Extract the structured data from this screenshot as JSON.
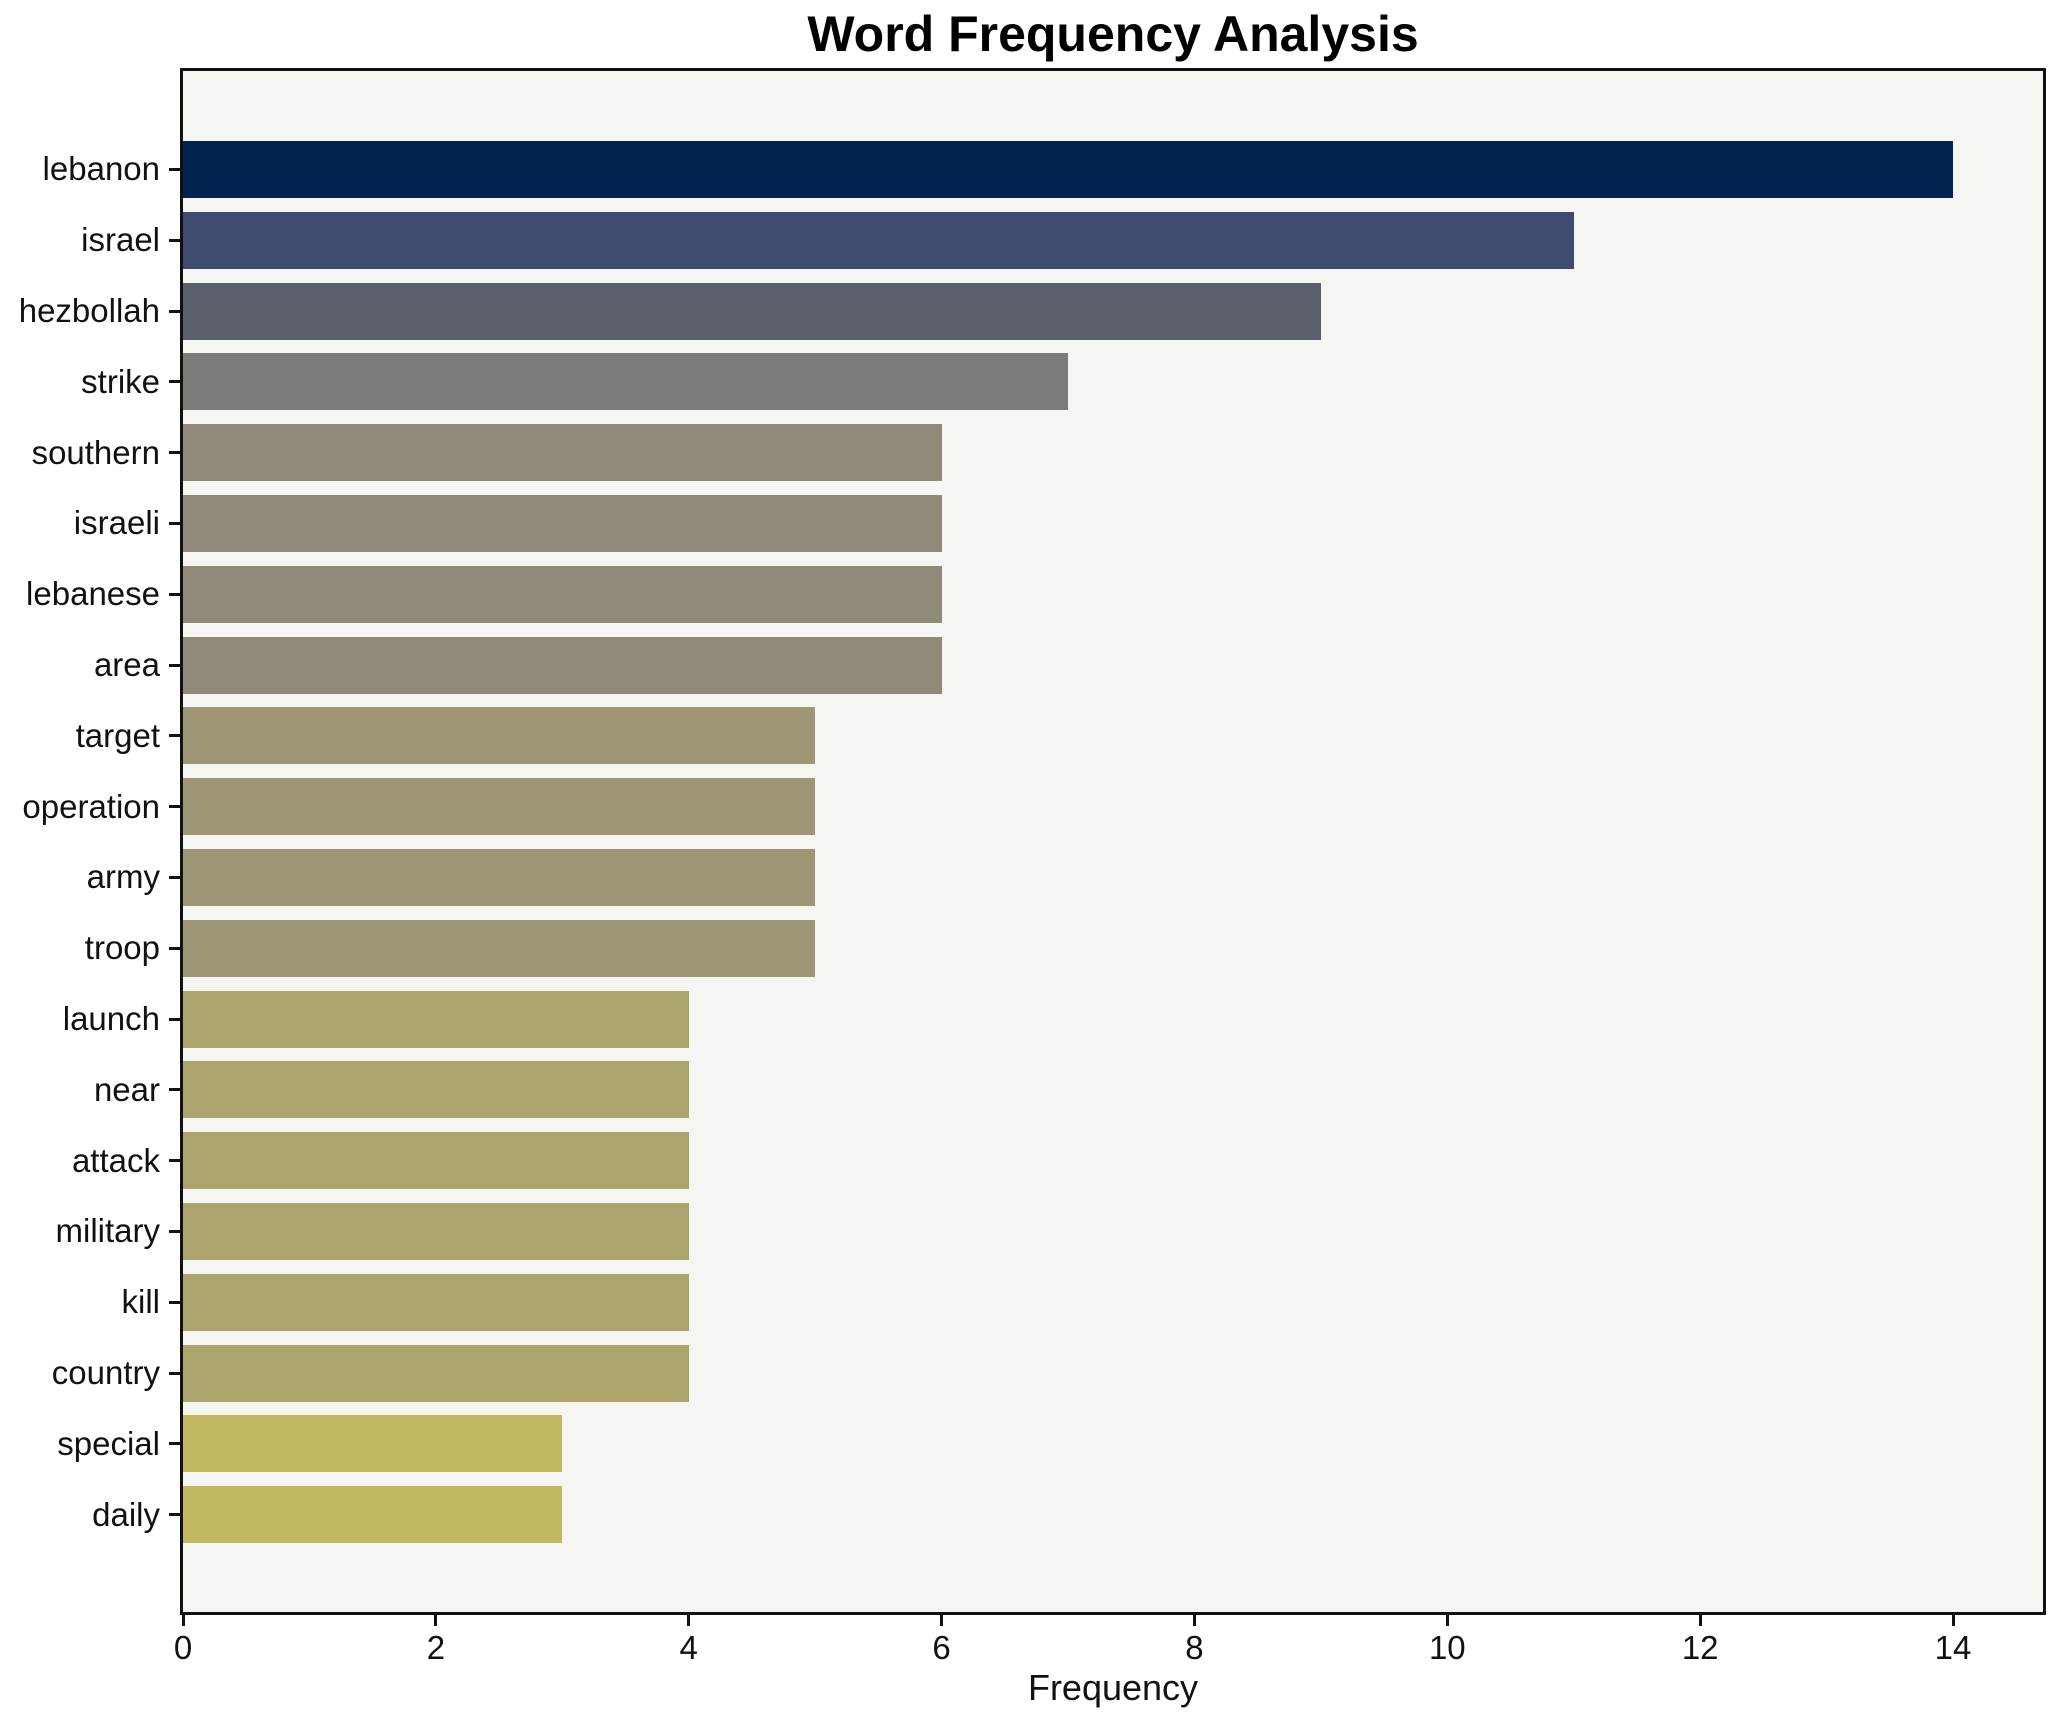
{
  "title": "Word Frequency Analysis",
  "chart_data": {
    "type": "bar",
    "orientation": "horizontal",
    "title": "Word Frequency Analysis",
    "xlabel": "Frequency",
    "ylabel": "",
    "categories": [
      "lebanon",
      "israel",
      "hezbollah",
      "strike",
      "southern",
      "israeli",
      "lebanese",
      "area",
      "target",
      "operation",
      "army",
      "troop",
      "launch",
      "near",
      "attack",
      "military",
      "kill",
      "country",
      "special",
      "daily"
    ],
    "values": [
      14,
      11,
      9,
      7,
      6,
      6,
      6,
      6,
      5,
      5,
      5,
      5,
      4,
      4,
      4,
      4,
      4,
      4,
      3,
      3
    ],
    "bar_colors": [
      "#032350",
      "#3c4b6e",
      "#5b5f6b",
      "#7c7b77",
      "#8f8a79",
      "#8f8a79",
      "#8f8a79",
      "#8f8a79",
      "#9d9776",
      "#9d9776",
      "#9d9776",
      "#9d9776",
      "#aca46d",
      "#aca46d",
      "#aca46d",
      "#aca46d",
      "#aca46d",
      "#aca46d",
      "#c4b761",
      "#c4b761"
    ],
    "xticks": [
      0,
      2,
      4,
      6,
      8,
      10,
      12,
      14
    ],
    "xlim": [
      0,
      14.71
    ],
    "grid": false,
    "legend": null,
    "plot_background": "#f5f5f2",
    "figure_background": "#ffffff",
    "spine_color": "#111111",
    "text_color": "#111111"
  }
}
